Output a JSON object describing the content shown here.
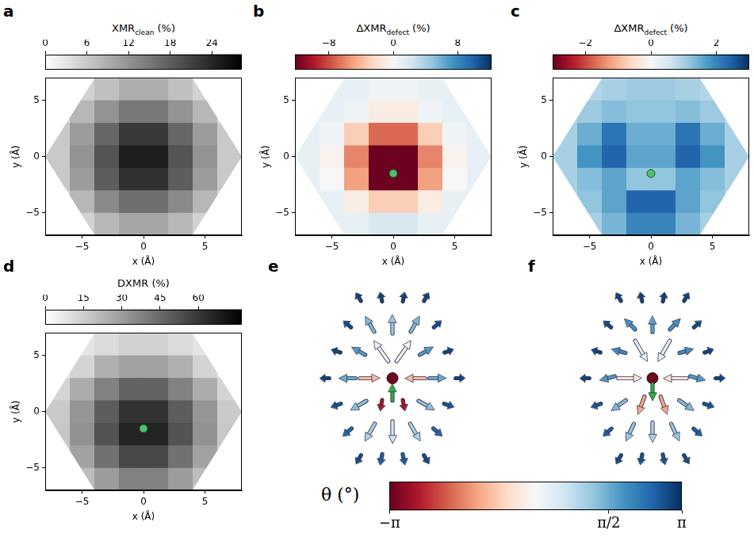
{
  "chart_data": [
    {
      "panel": "a",
      "type": "heatmap",
      "x_label": "x (Å)",
      "y_label": "y (Å)",
      "xlim": [
        -8,
        8
      ],
      "ylim": [
        -7,
        7
      ],
      "xticks": [
        {
          "value": -5,
          "label": "−5"
        },
        0,
        5
      ],
      "yticks": [
        {
          "value": -5,
          "label": "−5"
        },
        0,
        5
      ],
      "x": [
        -7,
        -5,
        -3,
        -1,
        1,
        3,
        5,
        7
      ],
      "y": [
        6,
        4,
        2,
        0,
        -2,
        -4,
        -6
      ],
      "cells": [
        [
          2,
          5,
          7,
          9,
          9,
          7,
          5,
          2
        ],
        [
          4,
          8,
          12,
          15,
          15,
          12,
          8,
          4
        ],
        [
          6,
          11,
          17,
          22,
          22,
          17,
          11,
          6
        ],
        [
          6,
          12,
          19,
          25,
          25,
          19,
          12,
          6
        ],
        [
          6,
          11,
          18,
          23,
          23,
          18,
          11,
          6
        ],
        [
          4,
          8,
          13,
          16,
          16,
          13,
          8,
          4
        ],
        [
          2,
          5,
          8,
          10,
          10,
          8,
          5,
          2
        ]
      ],
      "boundary": [
        [
          -8,
          0
        ],
        [
          -4,
          6.93
        ],
        [
          4,
          6.93
        ],
        [
          8,
          0
        ],
        [
          4,
          -6.93
        ],
        [
          -4,
          -6.93
        ]
      ],
      "colorbar": {
        "label": {
          "main": "XMR",
          "sub": "clean",
          "unit": "(%)"
        },
        "range": [
          0,
          28.3
        ],
        "ticks": [
          0,
          6,
          12,
          18,
          24
        ]
      }
    },
    {
      "panel": "b",
      "type": "heatmap",
      "x_label": "x (Å)",
      "y_label": "y (Å)",
      "xlim": [
        -8,
        8
      ],
      "ylim": [
        -7,
        7
      ],
      "xticks": [
        {
          "value": -5,
          "label": "−5"
        },
        0,
        5
      ],
      "yticks": [
        {
          "value": -5,
          "label": "−5"
        },
        0,
        5
      ],
      "x": [
        -7,
        -5,
        -3,
        -1,
        1,
        3,
        5,
        7
      ],
      "y": [
        6,
        4,
        2,
        0,
        -2,
        -4,
        -6
      ],
      "cells": [
        [
          1,
          1,
          1,
          0.5,
          0.5,
          1,
          1,
          1
        ],
        [
          1,
          1,
          0.5,
          -1,
          -1,
          0.5,
          1,
          1
        ],
        [
          1,
          0.5,
          -3,
          -7,
          -7,
          -3,
          0.5,
          1
        ],
        [
          1,
          -0.5,
          -6,
          -12,
          -12,
          -6,
          -0.5,
          1
        ],
        [
          1,
          0,
          -5,
          -12,
          -12,
          -5,
          0,
          1
        ],
        [
          1,
          1,
          -1,
          -3,
          -3,
          -1,
          1,
          1
        ],
        [
          1,
          1,
          1,
          2,
          2,
          1,
          1,
          1
        ]
      ],
      "boundary": [
        [
          -8,
          0
        ],
        [
          -4,
          6.93
        ],
        [
          4,
          6.93
        ],
        [
          8,
          0
        ],
        [
          4,
          -6.93
        ],
        [
          -4,
          -6.93
        ]
      ],
      "defect": {
        "x": 0,
        "y": -1.5
      },
      "colorbar": {
        "label": {
          "main": "ΔXMR",
          "sub": "defect",
          "unit": "(%)"
        },
        "range": [
          -12.2,
          12.2
        ],
        "ticks": [
          {
            "value": -8,
            "label": "−8"
          },
          0,
          8
        ]
      }
    },
    {
      "panel": "c",
      "type": "heatmap",
      "x_label": "x (Å)",
      "y_label": "y (Å)",
      "xlim": [
        -8,
        8
      ],
      "ylim": [
        -7,
        7
      ],
      "xticks": [
        {
          "value": -5,
          "label": "−5"
        },
        0,
        5
      ],
      "yticks": [
        {
          "value": -5,
          "label": "−5"
        },
        0,
        5
      ],
      "x": [
        -7,
        -5,
        -3,
        -1,
        1,
        3,
        5,
        7
      ],
      "y": [
        6,
        4,
        2,
        0,
        -2,
        -4,
        -6
      ],
      "cells": [
        [
          0.8,
          0.9,
          1,
          1.1,
          1.1,
          1,
          0.9,
          0.8
        ],
        [
          0.9,
          1.1,
          1.3,
          1.2,
          1.2,
          1.3,
          1.1,
          0.9
        ],
        [
          1,
          1.5,
          2.2,
          1.5,
          1.5,
          2.2,
          1.5,
          1
        ],
        [
          1,
          1.8,
          2.4,
          1.6,
          1.6,
          2.4,
          1.8,
          1
        ],
        [
          1,
          1.3,
          1.6,
          1.2,
          1.2,
          1.6,
          1.3,
          1
        ],
        [
          0.9,
          1.2,
          1.6,
          2.4,
          2.4,
          1.6,
          1.2,
          0.9
        ],
        [
          0.8,
          1,
          1.4,
          2,
          2,
          1.4,
          1,
          0.8
        ]
      ],
      "boundary": [
        [
          -8,
          0
        ],
        [
          -4,
          6.93
        ],
        [
          4,
          6.93
        ],
        [
          8,
          0
        ],
        [
          4,
          -6.93
        ],
        [
          -4,
          -6.93
        ]
      ],
      "defect": {
        "x": 0,
        "y": -1.5
      },
      "colorbar": {
        "label": {
          "main": "ΔXMR",
          "sub": "defect",
          "unit": "(%)"
        },
        "range": [
          -3,
          3
        ],
        "ticks": [
          {
            "value": -2,
            "label": "−2"
          },
          0,
          2
        ]
      }
    },
    {
      "panel": "d",
      "type": "heatmap",
      "x_label": "x (Å)",
      "y_label": "y (Å)",
      "xlim": [
        -8,
        8
      ],
      "ylim": [
        -7,
        7
      ],
      "xticks": [
        {
          "value": -5,
          "label": "−5"
        },
        0,
        5
      ],
      "yticks": [
        {
          "value": -5,
          "label": "−5"
        },
        0,
        5
      ],
      "x": [
        -7,
        -5,
        -3,
        -1,
        1,
        3,
        5,
        7
      ],
      "y": [
        6,
        4,
        2,
        0,
        -2,
        -4,
        -6
      ],
      "cells": [
        [
          5,
          8,
          11,
          14,
          14,
          11,
          8,
          5
        ],
        [
          7,
          13,
          24,
          28,
          28,
          24,
          13,
          7
        ],
        [
          13,
          25,
          38,
          47,
          47,
          38,
          25,
          13
        ],
        [
          16,
          32,
          49,
          62,
          62,
          49,
          32,
          16
        ],
        [
          17,
          33,
          52,
          66,
          66,
          52,
          33,
          17
        ],
        [
          15,
          28,
          43,
          55,
          55,
          43,
          28,
          15
        ],
        [
          10,
          20,
          30,
          38,
          38,
          30,
          20,
          10
        ]
      ],
      "boundary": [
        [
          -8,
          0
        ],
        [
          -4,
          6.93
        ],
        [
          4,
          6.93
        ],
        [
          8,
          0
        ],
        [
          4,
          -6.93
        ],
        [
          -4,
          -6.93
        ]
      ],
      "defect": {
        "x": 0,
        "y": -1.5
      },
      "colorbar": {
        "label": {
          "main": "DXMR",
          "unit": "(%)"
        },
        "range": [
          0,
          77
        ],
        "ticks": [
          0,
          15,
          30,
          45,
          60
        ]
      }
    },
    {
      "panel": "e",
      "type": "vector",
      "tick_labels": false,
      "xlim": [
        -3.4,
        3.4
      ],
      "ylim": [
        -2.9,
        2.9
      ],
      "vectors": {
        "x": [
          1,
          0.5,
          -0.5,
          -1,
          -0.5,
          0.5,
          2,
          1.5,
          1,
          0,
          -1,
          -1.5,
          -2,
          -1.5,
          -1,
          0,
          1,
          1.5,
          3,
          2.5,
          2,
          1.5,
          0.5,
          -0.5,
          -1.5,
          -2,
          -2.5,
          -3,
          -2.5,
          -2,
          -1.5,
          -0.5,
          0.5,
          1.5,
          2,
          2.5
        ],
        "y": [
          0,
          0.87,
          0.87,
          0,
          -0.87,
          -0.87,
          0,
          0.87,
          1.73,
          1.73,
          1.73,
          0.87,
          0,
          -0.87,
          -1.73,
          -1.73,
          -1.73,
          -0.87,
          0,
          0.87,
          1.73,
          2.6,
          2.6,
          2.6,
          2.6,
          1.73,
          0.87,
          0,
          -0.87,
          -1.73,
          -2.6,
          -2.6,
          -2.6,
          -2.6,
          -1.73,
          -0.87
        ],
        "phi": [
          180,
          55,
          125,
          0,
          260,
          280,
          0,
          30,
          60,
          90,
          120,
          150,
          180,
          210,
          240,
          270,
          300,
          330,
          0,
          19,
          41,
          60,
          79,
          101,
          120,
          139,
          161,
          180,
          199,
          221,
          240,
          259,
          281,
          300,
          319,
          341
        ],
        "theta": [
          -1.0,
          0.1,
          0.1,
          -1.0,
          -2.6,
          -2.6,
          1.6,
          1.8,
          1.4,
          1.2,
          1.4,
          1.8,
          1.6,
          1.3,
          1.0,
          0.6,
          1.0,
          1.3,
          2.9,
          2.9,
          2.8,
          2.9,
          2.9,
          2.9,
          2.9,
          2.8,
          2.9,
          2.9,
          2.7,
          2.5,
          2.8,
          2.6,
          2.6,
          2.8,
          2.5,
          2.7
        ]
      },
      "defect": {
        "x": 0,
        "y": 0
      },
      "defect_moment": {
        "x": 0,
        "y": -0.45,
        "phi": 90
      }
    },
    {
      "panel": "f",
      "type": "vector",
      "tick_labels": false,
      "xlim": [
        -3.4,
        3.4
      ],
      "ylim": [
        -2.9,
        2.9
      ],
      "vectors": {
        "x": [
          1,
          0.5,
          -0.5,
          -1,
          -0.5,
          0.5,
          2,
          1.5,
          1,
          0,
          -1,
          -1.5,
          -2,
          -1.5,
          -1,
          0,
          1,
          1.5,
          3,
          2.5,
          2,
          1.5,
          0.5,
          -0.5,
          -1.5,
          -2,
          -2.5,
          -3,
          -2.5,
          -2,
          -1.5,
          -0.5,
          0.5,
          1.5,
          2,
          2.5
        ],
        "y": [
          0,
          0.87,
          0.87,
          0,
          -0.87,
          -0.87,
          0,
          0.87,
          1.73,
          1.73,
          1.73,
          0.87,
          0,
          -0.87,
          -1.73,
          -1.73,
          -1.73,
          -0.87,
          0,
          0.87,
          1.73,
          2.6,
          2.6,
          2.6,
          2.6,
          1.73,
          0.87,
          0,
          -0.87,
          -1.73,
          -2.6,
          -2.6,
          -2.6,
          -2.6,
          -1.73,
          -0.87
        ],
        "phi": [
          180,
          240,
          300,
          0,
          250,
          290,
          345,
          15,
          45,
          90,
          135,
          165,
          195,
          215,
          245,
          270,
          295,
          325,
          0,
          19,
          41,
          60,
          79,
          101,
          120,
          139,
          161,
          180,
          199,
          221,
          240,
          259,
          281,
          300,
          319,
          341
        ],
        "theta": [
          -0.4,
          0.3,
          0.3,
          -0.4,
          -1.2,
          -1.2,
          1.8,
          2.0,
          1.9,
          1.7,
          1.9,
          2.0,
          1.8,
          1.4,
          1.2,
          1.0,
          1.2,
          1.4,
          2.9,
          2.9,
          2.8,
          2.9,
          2.9,
          2.9,
          2.9,
          2.8,
          2.9,
          2.9,
          2.7,
          2.6,
          2.8,
          2.7,
          2.7,
          2.8,
          2.6,
          2.7
        ]
      },
      "defect": {
        "x": 0,
        "y": 0
      },
      "defect_moment": {
        "x": 0,
        "y": -0.45,
        "phi": 270
      }
    }
  ],
  "theta_colorbar": {
    "label": "θ (°)",
    "range": [
      -3.1416,
      3.1416
    ],
    "ticks": [
      {
        "value": -3.1416,
        "label": "−π"
      },
      {
        "value": 1.5708,
        "label": "π/2"
      },
      {
        "value": 3.1416,
        "label": "π"
      }
    ]
  }
}
